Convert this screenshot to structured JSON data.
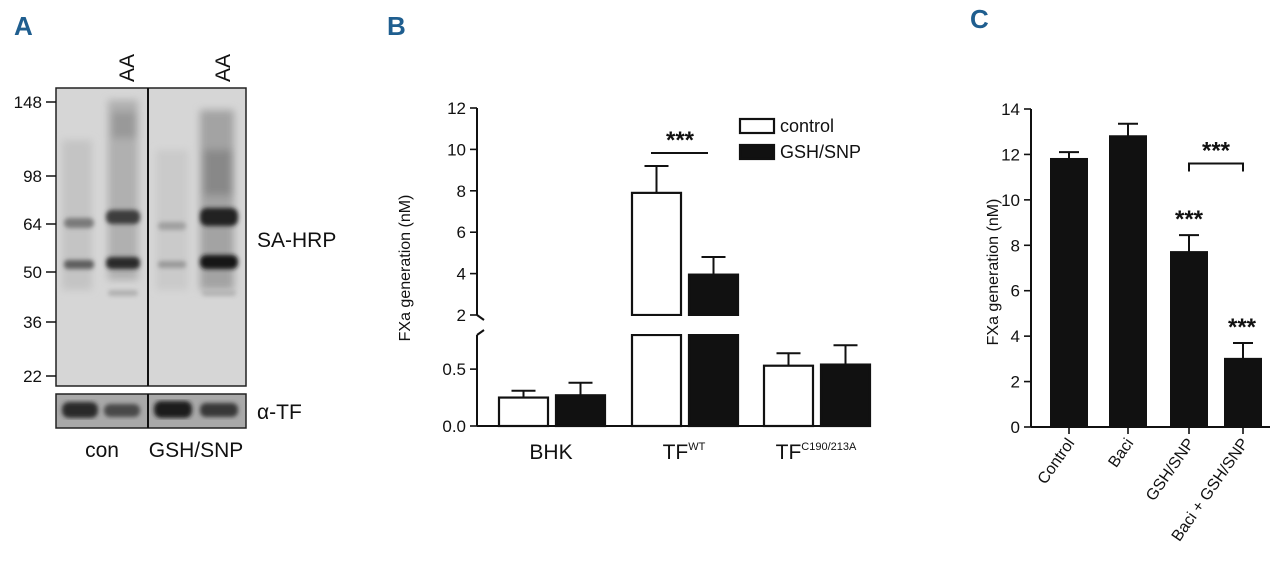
{
  "panel_labels": [
    "A",
    "B",
    "C"
  ],
  "blot": {
    "lane_labels": [
      "AA",
      "AA"
    ],
    "mw_markers": [
      "148",
      "98",
      "64",
      "50",
      "36",
      "22"
    ],
    "band_label": "SA-HRP",
    "loading_label": "α-TF",
    "group_labels": [
      "con",
      "GSH/SNP"
    ]
  },
  "chart_data": [
    {
      "type": "bar",
      "panel": "B",
      "ylabel": "FXa generation (nM)",
      "categories": [
        {
          "base": "BHK",
          "sup": ""
        },
        {
          "base": "TF",
          "sup": "WT"
        },
        {
          "base": "TF",
          "sup": "C190/213A"
        }
      ],
      "series": [
        {
          "name": "control",
          "fill": "#ffffff",
          "values": [
            0.25,
            7.9,
            0.53
          ],
          "errors": [
            0.06,
            1.3,
            0.11
          ]
        },
        {
          "name": "GSH/SNP",
          "fill": "#111111",
          "values": [
            0.27,
            3.95,
            0.54
          ],
          "errors": [
            0.11,
            0.85,
            0.17
          ]
        }
      ],
      "axis_break": true,
      "lower_ticks": [
        "0.0",
        "0.5"
      ],
      "upper_ticks": [
        "2",
        "4",
        "6",
        "8",
        "10",
        "12"
      ],
      "lower_ylim": [
        0,
        0.8
      ],
      "upper_ylim": [
        2,
        12
      ],
      "legend_position": "top-right",
      "annotations": [
        {
          "text": "***",
          "between": "TF control vs GSH/SNP"
        }
      ]
    },
    {
      "type": "bar",
      "panel": "C",
      "ylabel": "FXa generation (nM)",
      "categories": [
        "Control",
        "Baci",
        "GSH/SNP",
        "Baci + GSH/SNP"
      ],
      "values": [
        11.8,
        12.8,
        7.7,
        3.0
      ],
      "errors": [
        0.3,
        0.55,
        0.75,
        0.7
      ],
      "ylim": [
        0,
        14
      ],
      "yticks": [
        "0",
        "2",
        "4",
        "6",
        "8",
        "10",
        "12",
        "14"
      ],
      "annotations": [
        {
          "text": "***",
          "target": "GSH/SNP"
        },
        {
          "text": "***",
          "target": "Baci + GSH/SNP"
        },
        {
          "text": "***",
          "bracket": "GSH/SNP vs Baci + GSH/SNP"
        }
      ]
    }
  ]
}
